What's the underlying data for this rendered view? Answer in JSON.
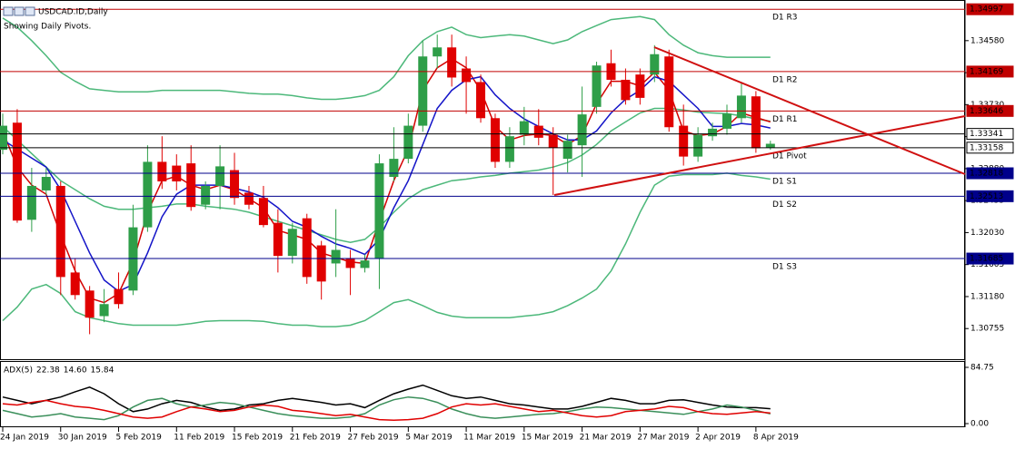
{
  "chart_data": [
    {
      "type": "candlestick",
      "title": "USDCAD.ID,Daily",
      "subtitle": "Showing Daily Pivots.",
      "categories": [
        "24 Jan 2019",
        null,
        null,
        null,
        "30 Jan 2019",
        null,
        null,
        null,
        "5 Feb 2019",
        null,
        null,
        null,
        "11 Feb 2019",
        null,
        null,
        null,
        "15 Feb 2019",
        null,
        null,
        null,
        "21 Feb 2019",
        null,
        null,
        null,
        "27 Feb 2019",
        null,
        null,
        null,
        "5 Mar 2019",
        null,
        null,
        null,
        "11 Mar 2019",
        null,
        null,
        null,
        "15 Mar 2019",
        null,
        null,
        null,
        "21 Mar 2019",
        null,
        null,
        null,
        "27 Mar 2019",
        null,
        null,
        null,
        "2 Apr 2019",
        null,
        null,
        null,
        "8 Apr 2019",
        null
      ],
      "open": [
        1.3313,
        1.3349,
        1.322,
        1.3259,
        1.3265,
        1.315,
        1.3126,
        1.3092,
        1.3128,
        1.3126,
        1.321,
        1.3297,
        1.3292,
        1.3295,
        1.324,
        1.3265,
        1.3286,
        1.3256,
        1.3249,
        1.3216,
        1.3172,
        1.3222,
        1.3186,
        1.3162,
        1.3168,
        1.3156,
        1.3168,
        1.3277,
        1.3301,
        1.3345,
        1.3437,
        1.3449,
        1.3421,
        1.3403,
        1.3355,
        1.3297,
        1.3333,
        1.3345,
        1.3333,
        1.3301,
        1.3319,
        1.337,
        1.3428,
        1.3406,
        1.3413,
        1.3413,
        1.3437,
        1.3345,
        1.3304,
        1.3331,
        1.3341,
        1.3355,
        1.3384,
        1.3316
      ],
      "high": [
        1.3361,
        1.3367,
        1.3289,
        1.3289,
        1.3271,
        1.3168,
        1.3132,
        1.3128,
        1.315,
        1.324,
        1.3319,
        1.3331,
        1.3307,
        1.3319,
        1.3271,
        1.3319,
        1.3309,
        1.3265,
        1.3265,
        1.3234,
        1.3216,
        1.3228,
        1.3192,
        1.3234,
        1.318,
        1.3174,
        1.3307,
        1.3343,
        1.3361,
        1.3458,
        1.3466,
        1.3466,
        1.3437,
        1.3413,
        1.3361,
        1.3343,
        1.337,
        1.3367,
        1.3343,
        1.3333,
        1.3397,
        1.343,
        1.3446,
        1.3421,
        1.3421,
        1.3452,
        1.3446,
        1.3373,
        1.3343,
        1.3349,
        1.3373,
        1.3403,
        1.3391,
        1.3325
      ],
      "low": [
        1.3307,
        1.3216,
        1.3204,
        1.3253,
        1.312,
        1.3114,
        1.3068,
        1.3084,
        1.3102,
        1.312,
        1.3204,
        1.3261,
        1.3259,
        1.3232,
        1.3234,
        1.3234,
        1.324,
        1.3234,
        1.321,
        1.315,
        1.3162,
        1.3135,
        1.3114,
        1.3144,
        1.312,
        1.315,
        1.3128,
        1.3271,
        1.3295,
        1.3337,
        1.3421,
        1.3397,
        1.3361,
        1.3349,
        1.3289,
        1.3289,
        1.3319,
        1.3319,
        1.3253,
        1.3283,
        1.3277,
        1.3361,
        1.3397,
        1.3373,
        1.3373,
        1.3403,
        1.3337,
        1.3292,
        1.3297,
        1.3325,
        1.3333,
        1.3349,
        1.3309,
        1.3313
      ],
      "close": [
        1.3345,
        1.3219,
        1.3265,
        1.3277,
        1.3144,
        1.312,
        1.309,
        1.3108,
        1.3108,
        1.321,
        1.3297,
        1.3271,
        1.3271,
        1.3237,
        1.3265,
        1.3291,
        1.3249,
        1.324,
        1.3213,
        1.3172,
        1.3208,
        1.3144,
        1.3138,
        1.318,
        1.3156,
        1.3166,
        1.3295,
        1.3301,
        1.3345,
        1.3437,
        1.3449,
        1.3409,
        1.3403,
        1.3355,
        1.3297,
        1.3331,
        1.3351,
        1.3329,
        1.3316,
        1.3325,
        1.336,
        1.3425,
        1.3406,
        1.3379,
        1.3382,
        1.344,
        1.3343,
        1.3304,
        1.3333,
        1.3341,
        1.3361,
        1.3385,
        1.3315,
        1.3321
      ],
      "up_color": "#2e9e48",
      "down_color": "#e00000",
      "lines": [
        {
          "color": "#4cb87a",
          "values": [
            1.3488,
            1.3476,
            1.3458,
            1.3438,
            1.3416,
            1.3404,
            1.3394,
            1.3392,
            1.339,
            1.339,
            1.339,
            1.3392,
            1.3392,
            1.3392,
            1.3392,
            1.3392,
            1.339,
            1.3388,
            1.3387,
            1.3387,
            1.3385,
            1.3382,
            1.338,
            1.338,
            1.3382,
            1.3385,
            1.3392,
            1.341,
            1.3438,
            1.3458,
            1.347,
            1.3476,
            1.3466,
            1.3462,
            1.3464,
            1.3466,
            1.3464,
            1.3459,
            1.3454,
            1.3459,
            1.347,
            1.3478,
            1.3486,
            1.3488,
            1.349,
            1.3486,
            1.3466,
            1.3452,
            1.3442,
            1.3438,
            1.3436,
            1.3436,
            1.3436,
            1.3436
          ]
        },
        {
          "color": "#4cb87a",
          "values": [
            1.3344,
            1.3326,
            1.3308,
            1.329,
            1.3272,
            1.326,
            1.3248,
            1.3238,
            1.3234,
            1.3234,
            1.3236,
            1.3238,
            1.3241,
            1.3241,
            1.3238,
            1.3236,
            1.3234,
            1.323,
            1.3224,
            1.3218,
            1.3212,
            1.3206,
            1.32,
            1.3194,
            1.319,
            1.3194,
            1.321,
            1.323,
            1.3248,
            1.326,
            1.3266,
            1.3272,
            1.3274,
            1.3277,
            1.3279,
            1.3282,
            1.3284,
            1.3286,
            1.329,
            1.3296,
            1.3306,
            1.332,
            1.3338,
            1.335,
            1.3362,
            1.3368,
            1.3368,
            1.3366,
            1.3363,
            1.3362,
            1.3361,
            1.3358,
            1.3354,
            1.3351
          ]
        },
        {
          "color": "#4cb87a",
          "values": [
            1.3086,
            1.3104,
            1.3128,
            1.3134,
            1.3122,
            1.3098,
            1.309,
            1.3086,
            1.3082,
            1.308,
            1.308,
            1.308,
            1.308,
            1.3082,
            1.3085,
            1.3086,
            1.3086,
            1.3086,
            1.3085,
            1.3082,
            1.308,
            1.308,
            1.3078,
            1.3078,
            1.308,
            1.3086,
            1.3098,
            1.311,
            1.3114,
            1.3106,
            1.3097,
            1.3092,
            1.309,
            1.309,
            1.309,
            1.309,
            1.3092,
            1.3094,
            1.3098,
            1.3106,
            1.3116,
            1.3128,
            1.3152,
            1.3188,
            1.323,
            1.3266,
            1.3278,
            1.328,
            1.328,
            1.328,
            1.3282,
            1.3279,
            1.3277,
            1.3274
          ]
        },
        {
          "color": "#d40000",
          "values": [
            1.3338,
            1.329,
            1.3266,
            1.3254,
            1.32,
            1.3152,
            1.3116,
            1.311,
            1.3122,
            1.3164,
            1.323,
            1.3272,
            1.3278,
            1.3266,
            1.326,
            1.3266,
            1.326,
            1.3248,
            1.3236,
            1.3206,
            1.32,
            1.3194,
            1.3176,
            1.317,
            1.3164,
            1.3162,
            1.3218,
            1.3272,
            1.3314,
            1.3392,
            1.3422,
            1.3434,
            1.3422,
            1.3392,
            1.3344,
            1.3326,
            1.3332,
            1.3334,
            1.3332,
            1.332,
            1.3332,
            1.3374,
            1.3404,
            1.3404,
            1.3398,
            1.3416,
            1.3392,
            1.3338,
            1.3332,
            1.3334,
            1.3344,
            1.3362,
            1.3356,
            1.335
          ]
        },
        {
          "color": "#1414c8",
          "values": [
            1.3326,
            1.3314,
            1.3302,
            1.329,
            1.326,
            1.3218,
            1.3176,
            1.314,
            1.3125,
            1.3134,
            1.3176,
            1.3224,
            1.3254,
            1.3266,
            1.3266,
            1.3266,
            1.3262,
            1.3257,
            1.325,
            1.3236,
            1.3218,
            1.321,
            1.3198,
            1.3188,
            1.3182,
            1.3174,
            1.3194,
            1.3236,
            1.3272,
            1.332,
            1.3368,
            1.3392,
            1.3406,
            1.341,
            1.3386,
            1.3368,
            1.3354,
            1.3344,
            1.3334,
            1.3326,
            1.3326,
            1.3338,
            1.3362,
            1.338,
            1.3392,
            1.341,
            1.3404,
            1.3386,
            1.3368,
            1.3344,
            1.3344,
            1.3348,
            1.3346,
            1.3342
          ]
        }
      ],
      "levels": [
        {
          "name": "D1 R3",
          "value": 1.34997,
          "color": "#c00000"
        },
        {
          "name": "D1 R2",
          "value": 1.34169,
          "color": "#c00000"
        },
        {
          "name": "D1 R1",
          "value": 1.33646,
          "color": "#c00000"
        },
        {
          "value": 1.33341,
          "color": "#000000"
        },
        {
          "name": "D1 Pivot",
          "value": 1.33158,
          "color": "#000000"
        },
        {
          "name": "D1 S1",
          "value": 1.32818,
          "color": "#00008b"
        },
        {
          "name": "D1 S2",
          "value": 1.32513,
          "color": "#00008b"
        },
        {
          "name": "D1 S3",
          "value": 1.31685,
          "color": "#00008b"
        }
      ],
      "ylim": [
        1.3036,
        1.3512
      ],
      "yticks": [
        {
          "value": 1.3458,
          "label": "1.34580"
        },
        1.34155,
        {
          "value": 1.3373,
          "label": "1.33730"
        },
        1.33305,
        {
          "value": 1.3288,
          "label": "1.32880"
        },
        1.32455,
        {
          "value": 1.3203,
          "label": "1.32030"
        },
        1.31605,
        {
          "value": 1.3118,
          "label": "1.31180"
        },
        1.30755
      ]
    },
    {
      "type": "line",
      "title": "ADX(5)",
      "series": [
        {
          "color": "#000000",
          "values": [
            40,
            35,
            30,
            35,
            40,
            48,
            55,
            45,
            30,
            18,
            22,
            30,
            35,
            32,
            25,
            20,
            22,
            28,
            30,
            35,
            38,
            35,
            32,
            28,
            30,
            24,
            35,
            45,
            52,
            58,
            50,
            42,
            38,
            40,
            35,
            30,
            28,
            25,
            22,
            22,
            26,
            32,
            38,
            35,
            30,
            30,
            35,
            36,
            32,
            28,
            25,
            24,
            24,
            22.38
          ]
        },
        {
          "color": "#3a8f5a",
          "values": [
            20,
            15,
            10,
            12,
            15,
            10,
            8,
            6,
            12,
            25,
            35,
            38,
            30,
            25,
            28,
            32,
            30,
            25,
            20,
            15,
            12,
            10,
            8,
            8,
            10,
            15,
            28,
            36,
            40,
            38,
            32,
            22,
            15,
            10,
            8,
            10,
            12,
            14,
            15,
            18,
            22,
            25,
            24,
            22,
            20,
            18,
            16,
            14,
            18,
            22,
            28,
            25,
            20,
            14.6
          ],
          "value_labels": [
            null,
            null,
            null,
            null,
            null,
            null,
            null,
            null,
            null,
            null,
            null,
            null,
            null,
            null,
            null,
            null,
            null,
            null,
            null,
            null,
            null,
            null,
            null,
            null,
            null,
            null,
            null,
            null,
            null,
            null,
            null,
            null,
            null,
            null,
            null,
            null,
            null,
            null,
            null,
            null,
            null,
            null,
            null,
            null,
            null,
            null,
            null,
            null,
            null,
            null,
            null,
            null,
            null,
            "14.60"
          ]
        },
        {
          "color": "#e00000",
          "values": [
            30,
            28,
            32,
            35,
            30,
            26,
            24,
            20,
            15,
            10,
            8,
            10,
            18,
            25,
            22,
            18,
            20,
            25,
            28,
            26,
            20,
            18,
            15,
            12,
            14,
            10,
            6,
            5,
            6,
            8,
            15,
            25,
            30,
            28,
            30,
            26,
            22,
            18,
            20,
            16,
            12,
            10,
            12,
            18,
            20,
            22,
            26,
            24,
            18,
            15,
            14,
            16,
            18,
            15.84
          ]
        }
      ],
      "ylim": [
        0,
        84.75
      ],
      "yticks": [
        84.75,
        {
          "value": 0,
          "label": "0.00"
        }
      ]
    }
  ]
}
